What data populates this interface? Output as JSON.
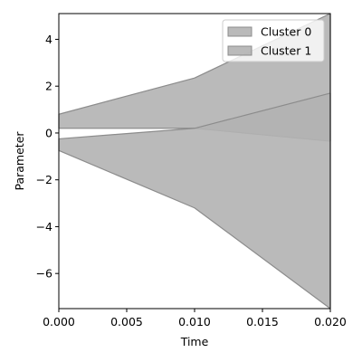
{
  "chart_data": {
    "type": "area",
    "title": "",
    "xlabel": "Time",
    "ylabel": "Parameter",
    "xlim": [
      0.0,
      0.02
    ],
    "ylim": [
      -7.5,
      5.1
    ],
    "x_ticks": [
      0.0,
      0.005,
      0.01,
      0.015,
      0.02
    ],
    "x_tick_labels": [
      "0.000",
      "0.005",
      "0.010",
      "0.015",
      "0.020"
    ],
    "y_ticks": [
      -6,
      -4,
      -2,
      0,
      2,
      4
    ],
    "y_tick_labels": [
      "−6",
      "−4",
      "−2",
      "0",
      "2",
      "4"
    ],
    "grid": false,
    "legend_position": "top-right",
    "series": [
      {
        "name": "Cluster 0",
        "x": [
          0.0,
          0.01,
          0.02
        ],
        "upper": [
          0.8,
          2.35,
          5.1
        ],
        "lower": [
          0.2,
          0.2,
          -0.35
        ],
        "fill_color": "#b3b3b3",
        "edge_color": "#8c8c8c"
      },
      {
        "name": "Cluster 1",
        "x": [
          0.0,
          0.01,
          0.02
        ],
        "upper": [
          -0.25,
          0.2,
          1.7
        ],
        "lower": [
          -0.75,
          -3.2,
          -7.5
        ],
        "fill_color": "#b3b3b3",
        "edge_color": "#8c8c8c"
      }
    ]
  }
}
